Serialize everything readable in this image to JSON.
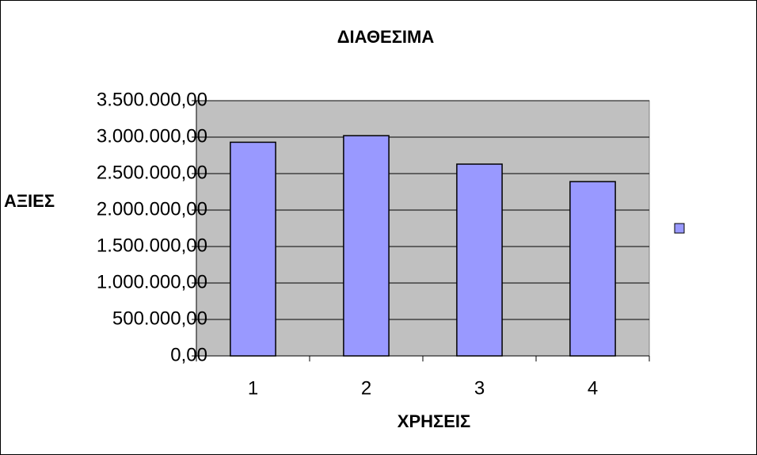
{
  "chart_data": {
    "type": "bar",
    "title": "ΔΙΑΘΕΣΙΜΑ",
    "x_label": "ΧΡΗΣΕΙΣ",
    "y_label": "ΑΞΙΕΣ",
    "categories": [
      "1",
      "2",
      "3",
      "4"
    ],
    "values": [
      2930000,
      3020000,
      2630000,
      2390000
    ],
    "color": "#9999ff",
    "ylim": [
      0,
      3500000
    ],
    "yticks": [
      {
        "value": 0,
        "label": "0,00"
      },
      {
        "value": 500000,
        "label": "500.000,00"
      },
      {
        "value": 1000000,
        "label": "1.000.000,00"
      },
      {
        "value": 1500000,
        "label": "1.500.000,00"
      },
      {
        "value": 2000000,
        "label": "2.000.000,00"
      },
      {
        "value": 2500000,
        "label": "2.500.000,00"
      },
      {
        "value": 3000000,
        "label": "3.000.000,00"
      },
      {
        "value": 3500000,
        "label": "3.500.000,00"
      }
    ],
    "grid": true,
    "legend": "right"
  }
}
